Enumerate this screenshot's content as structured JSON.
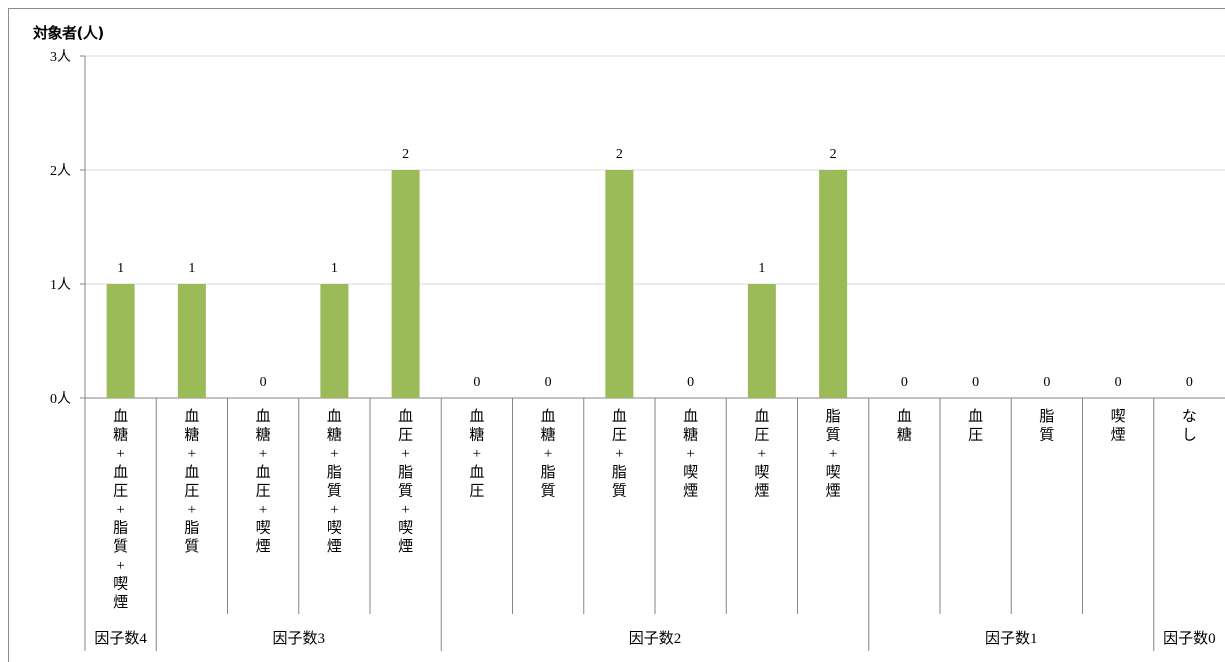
{
  "chart_data": {
    "type": "bar",
    "ylabel": "対象者(人)",
    "ylim": [
      0,
      3
    ],
    "yticks": [
      {
        "value": 0,
        "label": "0人"
      },
      {
        "value": 1,
        "label": "1人"
      },
      {
        "value": 2,
        "label": "2人"
      },
      {
        "value": 3,
        "label": "3人"
      }
    ],
    "categories": [
      "血糖+血圧+脂質+喫煙",
      "血糖+血圧+脂質",
      "血糖+血圧+喫煙",
      "血糖+脂質+喫煙",
      "血圧+脂質+喫煙",
      "血糖+血圧",
      "血糖+脂質",
      "血圧+脂質",
      "血糖+喫煙",
      "血圧+喫煙",
      "脂質+喫煙",
      "血糖",
      "血圧",
      "脂質",
      "喫煙",
      "なし"
    ],
    "category_label_chars": [
      [
        "血",
        "糖",
        "+",
        "血",
        "圧",
        "+",
        "脂",
        "質",
        "+",
        "喫",
        "煙"
      ],
      [
        "血",
        "糖",
        "+",
        "血",
        "圧",
        "+",
        "脂",
        "質"
      ],
      [
        "血",
        "糖",
        "+",
        "血",
        "圧",
        "+",
        "喫",
        "煙"
      ],
      [
        "血",
        "糖",
        "+",
        "脂",
        "質",
        "+",
        "喫",
        "煙"
      ],
      [
        "血",
        "圧",
        "+",
        "脂",
        "質",
        "+",
        "喫",
        "煙"
      ],
      [
        "血",
        "糖",
        "+",
        "血",
        "圧"
      ],
      [
        "血",
        "糖",
        "+",
        "脂",
        "質"
      ],
      [
        "血",
        "圧",
        "+",
        "脂",
        "質"
      ],
      [
        "血",
        "糖",
        "+",
        "喫",
        "煙"
      ],
      [
        "血",
        "圧",
        "+",
        "喫",
        "煙"
      ],
      [
        "脂",
        "質",
        "+",
        "喫",
        "煙"
      ],
      [
        "血",
        "糖"
      ],
      [
        "血",
        "圧"
      ],
      [
        "脂",
        "質"
      ],
      [
        "喫",
        "煙"
      ],
      [
        "な",
        "し"
      ]
    ],
    "values": [
      1,
      1,
      0,
      1,
      2,
      0,
      0,
      2,
      0,
      1,
      2,
      0,
      0,
      0,
      0,
      0
    ],
    "groups": [
      {
        "label": "因子数4",
        "count": 1
      },
      {
        "label": "因子数3",
        "count": 4
      },
      {
        "label": "因子数2",
        "count": 6
      },
      {
        "label": "因子数1",
        "count": 4
      },
      {
        "label": "因子数0",
        "count": 1
      }
    ],
    "data_labels": true,
    "grid": true,
    "bar_color": "#9bbb59",
    "grid_color": "#d9d9d9",
    "axis_color": "#868686"
  }
}
